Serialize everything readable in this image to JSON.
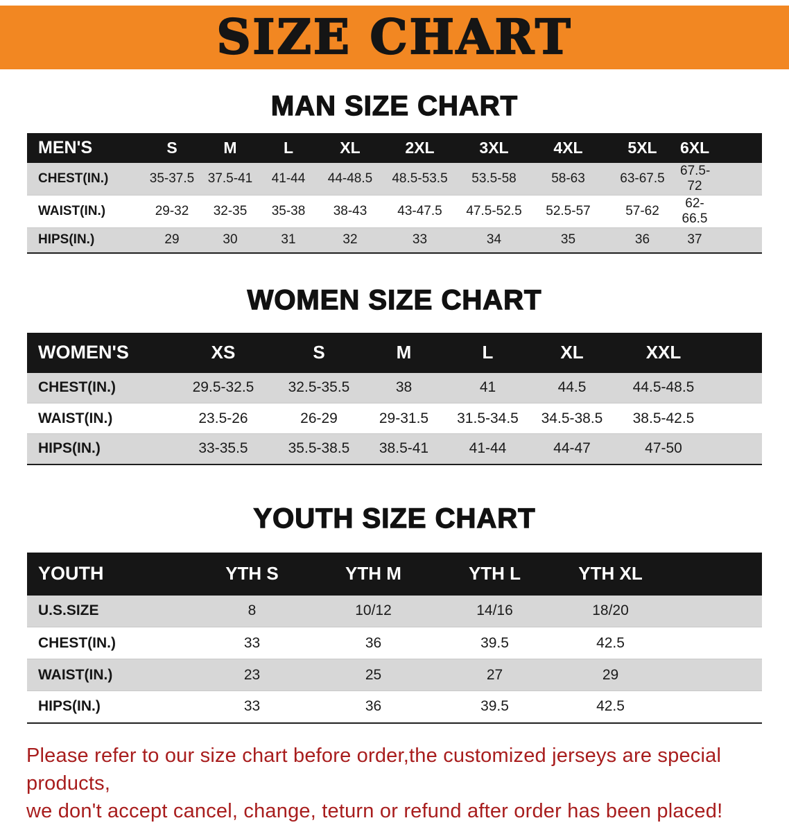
{
  "banner": {
    "title": "SIZE CHART",
    "bg_color": "#f28722",
    "text_color": "#151515"
  },
  "colors": {
    "table_header_bg": "#161616",
    "table_header_text": "#ffffff",
    "shaded_row_bg": "#d7d7d7",
    "disclaimer_text": "#a81d1d"
  },
  "sections": [
    {
      "heading": "MAN SIZE CHART",
      "table": {
        "header": [
          "MEN'S",
          "S",
          "M",
          "L",
          "XL",
          "2XL",
          "3XL",
          "4XL",
          "5XL",
          "6XL"
        ],
        "rows": [
          {
            "label": "CHEST(IN.)",
            "values": [
              "35-37.5",
              "37.5-41",
              "41-44",
              "44-48.5",
              "48.5-53.5",
              "53.5-58",
              "58-63",
              "63-67.5",
              "67.5-72"
            ]
          },
          {
            "label": "WAIST(IN.)",
            "values": [
              "29-32",
              "32-35",
              "35-38",
              "38-43",
              "43-47.5",
              "47.5-52.5",
              "52.5-57",
              "57-62",
              "62-66.5"
            ]
          },
          {
            "label": "HIPS(IN.)",
            "values": [
              "29",
              "30",
              "31",
              "32",
              "33",
              "34",
              "35",
              "36",
              "37"
            ]
          }
        ]
      }
    },
    {
      "heading": "WOMEN SIZE CHART",
      "table": {
        "header": [
          "WOMEN'S",
          "XS",
          "S",
          "M",
          "L",
          "XL",
          "XXL"
        ],
        "rows": [
          {
            "label": "CHEST(IN.)",
            "values": [
              "29.5-32.5",
              "32.5-35.5",
              "38",
              "41",
              "44.5",
              "44.5-48.5"
            ]
          },
          {
            "label": "WAIST(IN.)",
            "values": [
              "23.5-26",
              "26-29",
              "29-31.5",
              "31.5-34.5",
              "34.5-38.5",
              "38.5-42.5"
            ]
          },
          {
            "label": "HIPS(IN.)",
            "values": [
              "33-35.5",
              "35.5-38.5",
              "38.5-41",
              "41-44",
              "44-47",
              "47-50"
            ]
          }
        ]
      }
    },
    {
      "heading": "YOUTH SIZE CHART",
      "table": {
        "header": [
          "YOUTH",
          "YTH S",
          "YTH M",
          "YTH L",
          "YTH XL"
        ],
        "rows": [
          {
            "label": "U.S.SIZE",
            "values": [
              "8",
              "10/12",
              "14/16",
              "18/20"
            ]
          },
          {
            "label": "CHEST(IN.)",
            "values": [
              "33",
              "36",
              "39.5",
              "42.5"
            ]
          },
          {
            "label": "WAIST(IN.)",
            "values": [
              "23",
              "25",
              "27",
              "29"
            ]
          },
          {
            "label": "HIPS(IN.)",
            "values": [
              "33",
              "36",
              "39.5",
              "42.5"
            ]
          }
        ]
      }
    }
  ],
  "disclaimer": {
    "line1": "Please refer to our size chart before order,the customized jerseys are special products,",
    "line2": "we don't accept cancel, change, teturn or refund after order has been placed!"
  }
}
